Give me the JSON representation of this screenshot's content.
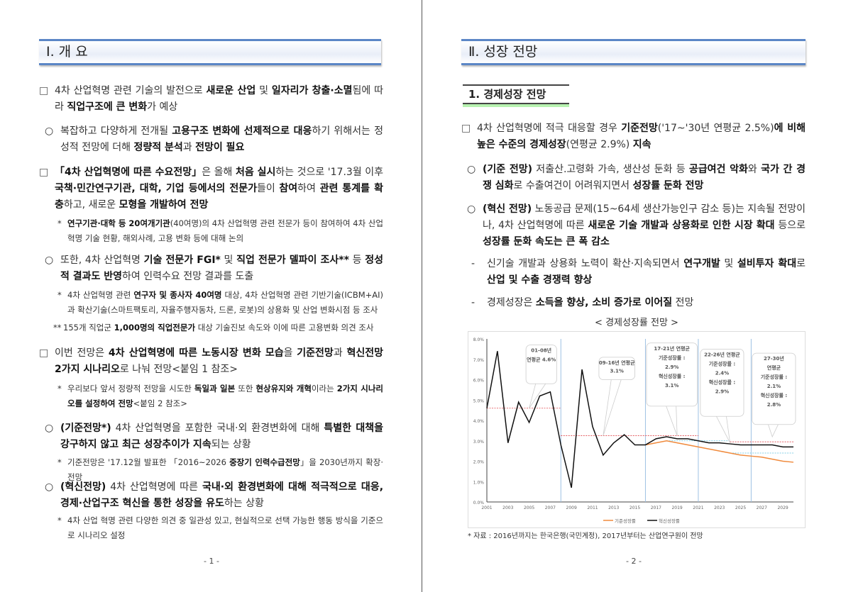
{
  "page1": {
    "header": "Ⅰ. 개 요",
    "footer": "- 1 -",
    "paragraphs": [
      {
        "marker": "□",
        "indent": 0,
        "top": 117,
        "note": false,
        "segs": [
          [
            "4차 산업혁명 관련 기술의 발전으로 ",
            0
          ],
          [
            "새로운 산업",
            1
          ],
          [
            " 및 ",
            0
          ],
          [
            "일자리가 창출·소멸",
            1
          ],
          [
            "됨에 따라 ",
            0
          ],
          [
            "직업구조에 큰 변화",
            1
          ],
          [
            "가 예상",
            0
          ]
        ]
      },
      {
        "marker": "○",
        "indent": 8,
        "top": 174,
        "note": false,
        "segs": [
          [
            "복잡하고 다양하게 전개될 ",
            0
          ],
          [
            "고용구조 변화에 선제적으로 대응",
            1
          ],
          [
            "하기 위해서는 정성적 전망에 더해 ",
            0
          ],
          [
            "정량적 분석",
            1
          ],
          [
            "과 ",
            0
          ],
          [
            "전망이 필요",
            1
          ]
        ]
      },
      {
        "marker": "□",
        "indent": 0,
        "top": 232,
        "note": false,
        "segs": [
          [
            "「4차 산업혁명에 따른 수요전망」",
            1
          ],
          [
            "은 올해 ",
            0
          ],
          [
            "처음 실시",
            1
          ],
          [
            "하는 것으로 '17.3월 이후 ",
            0
          ],
          [
            "국책·민간연구기관, 대학, 기업 등에서의 전문가",
            1
          ],
          [
            "들이 ",
            0
          ],
          [
            "참여",
            1
          ],
          [
            "하여 ",
            0
          ],
          [
            "관련 통계를 확충",
            1
          ],
          [
            "하고, 새로운 ",
            0
          ],
          [
            "모형을 개발하여 전망",
            1
          ]
        ]
      },
      {
        "marker": "*",
        "indent": 26,
        "top": 305,
        "note": true,
        "segs": [
          [
            "연구기관·대학 등 20여개기관",
            1
          ],
          [
            "(40여명)의 4차 산업혁명 관련 전문가 등이 참여하여 4차 산업혁명 기술 현황, 해외사례, 고용 변화 등에 대해 논의",
            0
          ]
        ]
      },
      {
        "marker": "○",
        "indent": 8,
        "top": 356,
        "note": false,
        "segs": [
          [
            "또한, 4차 산업혁명 ",
            0
          ],
          [
            "기술 전문가 FGI*",
            1
          ],
          [
            " 및 ",
            0
          ],
          [
            "직업 전문가 델파이 조사**",
            1
          ],
          [
            " 등 ",
            0
          ],
          [
            "정성적 결과도 반영",
            1
          ],
          [
            "하여 인력수요 전망 결과를 도출",
            0
          ]
        ]
      },
      {
        "marker": "*",
        "indent": 26,
        "top": 406,
        "note": true,
        "segs": [
          [
            "4차 산업혁명 관련 ",
            0
          ],
          [
            "연구자 및 종사자 40여명",
            1
          ],
          [
            " 대상, 4차 산업혁명 관련 기반기술(ICBM+AI)과 확산기술(스마트팩토리, 자율주행자동차, 드론, 로봇)의 상용화 및 산업 변화시점 등 조사",
            0
          ]
        ]
      },
      {
        "marker": "**",
        "indent": 20,
        "top": 452,
        "note": true,
        "segs": [
          [
            "155개 직업군 ",
            0
          ],
          [
            "1,000명의 직업전문가",
            1
          ],
          [
            " 대상 기술진보 속도와 이에 따른 고용변화 의견 조사",
            0
          ]
        ]
      },
      {
        "marker": "□",
        "indent": 0,
        "top": 487,
        "note": false,
        "segs": [
          [
            "이번 전망은 ",
            0
          ],
          [
            "4차 산업혁명에 따른 노동시장 변화 모습",
            1
          ],
          [
            "을 ",
            0
          ],
          [
            "기준전망",
            1
          ],
          [
            "과 ",
            0
          ],
          [
            "혁신전망 2가지 시나리오",
            1
          ],
          [
            "로 나눠 전망<붙임 1 참조>",
            0
          ]
        ]
      },
      {
        "marker": "*",
        "indent": 26,
        "top": 538,
        "note": true,
        "segs": [
          [
            "우리보다 앞서 정량적 전망을 시도한 ",
            0
          ],
          [
            "독일과 일본",
            1
          ],
          [
            " 또한 ",
            0
          ],
          [
            "현상유지와 개혁",
            1
          ],
          [
            "이라는 ",
            0
          ],
          [
            "2가지 시나리오를 설정하여 전망",
            1
          ],
          [
            "<붙임 2 참조>",
            0
          ]
        ]
      },
      {
        "marker": "○",
        "indent": 8,
        "top": 593,
        "note": false,
        "segs": [
          [
            "(기준전망*)",
            1
          ],
          [
            " 4차 산업혁명을 포함한 국내·외 환경변화에 대해 ",
            0
          ],
          [
            "특별한 대책을 강구하지 않고 최근 성장추이가 지속",
            1
          ],
          [
            "되는 상황",
            0
          ]
        ]
      },
      {
        "marker": "*",
        "indent": 26,
        "top": 642,
        "note": true,
        "segs": [
          [
            "기준전망은 '17.12월 발표한 「2016~2026 ",
            0
          ],
          [
            "중장기 인력수급전망",
            1
          ],
          [
            "」을 2030년까지 확장·전망",
            0
          ]
        ]
      },
      {
        "marker": "○",
        "indent": 8,
        "top": 676,
        "note": false,
        "segs": [
          [
            "(혁신전망)",
            1
          ],
          [
            " 4차 산업혁명에 따른 ",
            0
          ],
          [
            "국내·외 환경변화에 대해 적극적으로 대응, 경제·산업구조 혁신을 통한 성장을 유도",
            1
          ],
          [
            "하는 상황",
            0
          ]
        ]
      },
      {
        "marker": "*",
        "indent": 26,
        "top": 724,
        "note": true,
        "segs": [
          [
            "4차 산업 혁명 관련 다양한 의견 중 일관성 있고, 현실적으로 선택 가능한 행동 방식을 기준으로 시나리오 설정",
            0
          ]
        ]
      }
    ]
  },
  "page2": {
    "header": "Ⅱ. 성장 전망",
    "subheading": "1. 경제성장 전망",
    "footer": "- 2 -",
    "paragraphs": [
      {
        "marker": "□",
        "indent": 0,
        "top": 170,
        "note": false,
        "segs": [
          [
            "4차 산업혁명에 적극 대응할 경우 ",
            0
          ],
          [
            "기준전망",
            1
          ],
          [
            "('17~'30년 연평균 2.5%)",
            0
          ],
          [
            "에 비해 높은 수준의 경제성장",
            1
          ],
          [
            "(연평균 2.9%) ",
            0
          ],
          [
            "지속",
            1
          ]
        ]
      },
      {
        "marker": "○",
        "indent": 8,
        "top": 228,
        "note": false,
        "segs": [
          [
            "(기준 전망)",
            1
          ],
          [
            " 저출산.고령화 가속, 생산성 둔화 등 ",
            0
          ],
          [
            "공급여건 악화",
            1
          ],
          [
            "와 ",
            0
          ],
          [
            "국가 간 경쟁 심화",
            1
          ],
          [
            "로 수출여건이 어려워지면서 ",
            0
          ],
          [
            "성장률 둔화 전망",
            1
          ]
        ]
      },
      {
        "marker": "○",
        "indent": 8,
        "top": 284,
        "note": false,
        "segs": [
          [
            "(혁신 전망)",
            1
          ],
          [
            " 노동공급 문제(15~64세 생산가능인구 감소 등)는 지속될 전망이나, 4차 산업혁명에 따른 ",
            0
          ],
          [
            "새로운 기술 개발과 상용화로 인한 시장 확대",
            1
          ],
          [
            " 등으로 ",
            0
          ],
          [
            "성장률 둔화 속도는 큰 폭 감소",
            1
          ]
        ]
      },
      {
        "marker": "-",
        "indent": 14,
        "top": 361,
        "note": false,
        "segs": [
          [
            "신기술 개발과 상용화 노력이 확산·지속되면서 ",
            0
          ],
          [
            "연구개발",
            1
          ],
          [
            " 및 ",
            0
          ],
          [
            "설비투자 확대",
            1
          ],
          [
            "로 ",
            0
          ],
          [
            "산업 및 수출 경쟁력 향상",
            1
          ]
        ]
      },
      {
        "marker": "-",
        "indent": 14,
        "top": 416,
        "note": false,
        "segs": [
          [
            "경제성장은 ",
            0
          ],
          [
            "소득을 향상, 소비 증가로 이어질",
            1
          ],
          [
            " 전망",
            0
          ]
        ]
      }
    ],
    "chart_caption": "< 경제성장률 전망 >",
    "source": "* 자료 : 2016년까지는 한국은행(국민계정), 2017년부터는 산업연구원이 전망"
  },
  "chart_data": {
    "type": "line",
    "title": "",
    "xlabel": "",
    "ylabel": "",
    "ylim": [
      0,
      8
    ],
    "yticks": [
      "0.0%",
      "1.0%",
      "2.0%",
      "3.0%",
      "4.0%",
      "5.0%",
      "6.0%",
      "7.0%",
      "8.0%"
    ],
    "xticks": [
      "2001",
      "2003",
      "2005",
      "2007",
      "2009",
      "2011",
      "2013",
      "2015",
      "2017",
      "2019",
      "2021",
      "2023",
      "2025",
      "2027",
      "2029"
    ],
    "legend_position": "bottom",
    "series": [
      {
        "name": "기준성장률",
        "color": "#f08a3c",
        "x": [
          2016,
          2017,
          2018,
          2019,
          2020,
          2021,
          2022,
          2023,
          2024,
          2025,
          2026,
          2027,
          2028,
          2029,
          2030
        ],
        "values": [
          2.8,
          2.9,
          3.0,
          2.9,
          2.8,
          2.7,
          2.6,
          2.5,
          2.4,
          2.3,
          2.25,
          2.2,
          2.1,
          2.0,
          1.95
        ]
      },
      {
        "name": "혁신성장률",
        "color": "#111111",
        "x": [
          2001,
          2002,
          2003,
          2004,
          2005,
          2006,
          2007,
          2008,
          2009,
          2010,
          2011,
          2012,
          2013,
          2014,
          2015,
          2016,
          2017,
          2018,
          2019,
          2020,
          2021,
          2022,
          2023,
          2024,
          2025,
          2026,
          2027,
          2028,
          2029,
          2030
        ],
        "values": [
          4.6,
          7.4,
          2.9,
          4.9,
          3.9,
          5.2,
          5.4,
          2.8,
          0.7,
          6.5,
          3.7,
          2.3,
          2.9,
          3.3,
          2.8,
          2.8,
          3.1,
          3.2,
          3.1,
          3.1,
          3.0,
          2.9,
          2.9,
          2.85,
          2.8,
          2.8,
          2.8,
          2.8,
          2.7,
          2.7
        ]
      }
    ],
    "average_lines": [
      {
        "from": 2001,
        "to": 2008,
        "value": 4.6,
        "color": "#e0474c"
      },
      {
        "from": 2008,
        "to": 2021,
        "value": 3.25,
        "color": "#e0474c"
      },
      {
        "from": 2024,
        "to": 2030,
        "value": 2.95,
        "color": "#e0474c"
      },
      {
        "from": 2018,
        "to": 2024,
        "value": 3.0,
        "color": "#5bc0de"
      },
      {
        "from": 2024,
        "to": 2030,
        "value": 2.4,
        "color": "#5bc0de"
      }
    ],
    "period_dividers": [
      2008,
      2016,
      2021,
      2026
    ],
    "annotations": [
      {
        "lines": [
          "01-08년",
          "연평균 4.6%"
        ],
        "target": [
          2005,
          4.6
        ]
      },
      {
        "lines": [
          "09-16년 연평균",
          "3.1%"
        ],
        "target": [
          2012,
          3.25
        ]
      },
      {
        "lines": [
          "17-21년 연평균",
          "기준성장률 :",
          "2.9%",
          "혁신성장률 :",
          "3.1%"
        ],
        "target": [
          2019,
          3.25
        ]
      },
      {
        "lines": [
          "22-26년 연평균",
          "기준성장률 :",
          "2.4%",
          "혁신성장률 :",
          "2.9%"
        ],
        "target": [
          2024,
          2.9
        ]
      },
      {
        "lines": [
          "27-30년",
          "연평균",
          "기준성장률 :",
          "2.1%",
          "혁신성장률 :",
          "2.8%"
        ],
        "target": [
          2028,
          3.2
        ]
      }
    ]
  }
}
